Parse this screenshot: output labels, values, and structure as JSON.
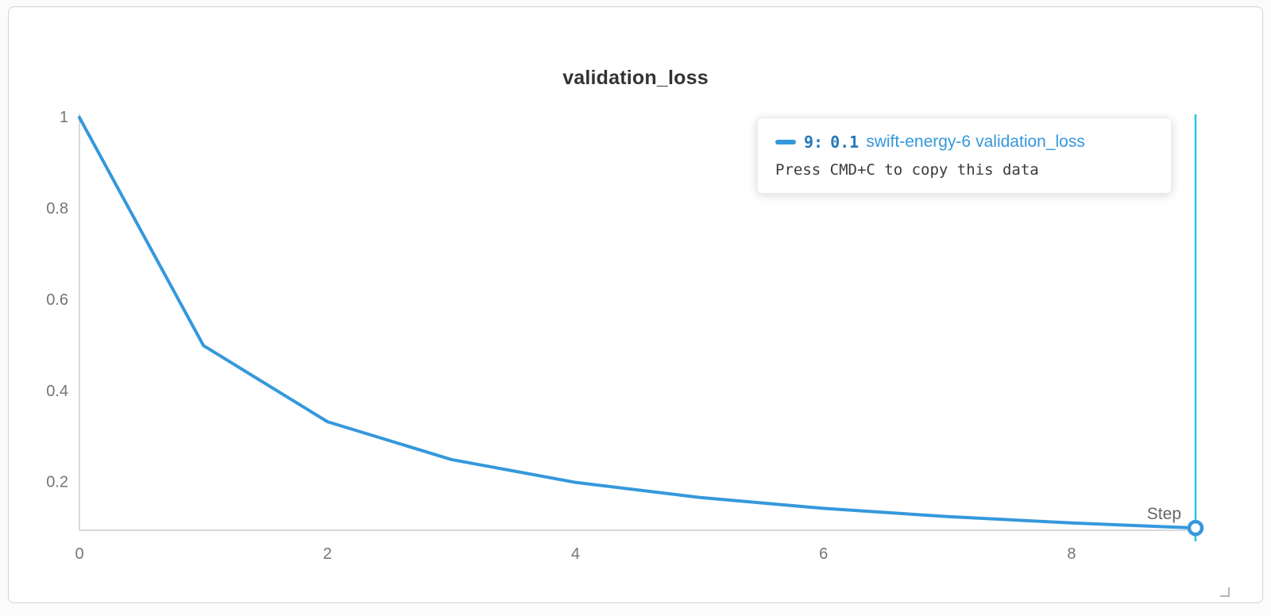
{
  "panel": {
    "title": "validation_loss"
  },
  "tooltip": {
    "step_label": "9:",
    "value_label": "0.1",
    "run_name": "swift-energy-6",
    "metric": "validation_loss",
    "hint": "Press CMD+C to copy this data"
  },
  "colors": {
    "line": "#3598db",
    "crosshair": "#26c6e0",
    "axis": "#d9d9d9",
    "tick_text": "#757575",
    "tooltip_value_text": "#2779b8",
    "tooltip_run_text": "#3598db"
  },
  "chart_data": {
    "type": "line",
    "title": "validation_loss",
    "xlabel": "Step",
    "ylabel": "",
    "series": [
      {
        "name": "swift-energy-6 validation_loss",
        "x": [
          0,
          1,
          2,
          3,
          4,
          5,
          6,
          7,
          8,
          9
        ],
        "values": [
          1.0,
          0.5,
          0.333,
          0.25,
          0.2,
          0.167,
          0.143,
          0.125,
          0.111,
          0.1
        ]
      }
    ],
    "xticks": [
      0,
      2,
      4,
      6,
      8
    ],
    "yticks": [
      0.2,
      0.4,
      0.6,
      0.8,
      1
    ],
    "xlim": [
      0,
      9
    ],
    "ylim": [
      0.095,
      1.0
    ],
    "grid": false,
    "legend_position": "tooltip",
    "highlight": {
      "x": 9,
      "y": 0.1
    }
  }
}
